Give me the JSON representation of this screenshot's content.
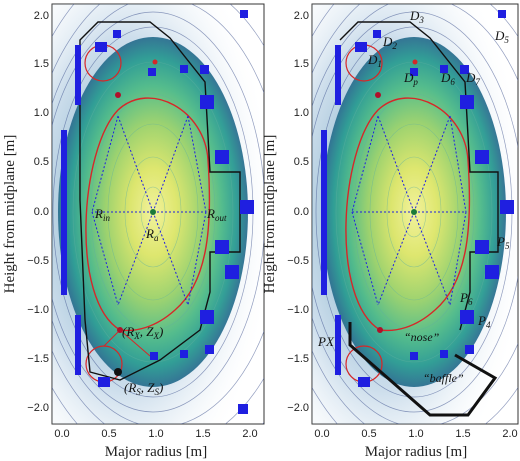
{
  "figure": {
    "xlabel": "Major radius [m]",
    "ylabel": "Height from midplane [m]",
    "xticks": [
      "0.0",
      "0.5",
      "1.0",
      "1.5",
      "2.0"
    ],
    "yticks": [
      "2.0",
      "1.5",
      "1.0",
      "0.5",
      "0.0",
      "−0.5",
      "−1.0",
      "−1.5",
      "−2.0"
    ]
  },
  "left_panel": {
    "labels": {
      "rin": "R",
      "rin_sub": "in",
      "ra": "R",
      "ra_sub": "a",
      "rout": "R",
      "rout_sub": "out",
      "x_point": "(R",
      "x_point_sub1": "X",
      "x_point_mid": ", Z",
      "x_point_sub2": "X",
      "x_point_end": ")",
      "strike": "(R",
      "strike_sub1": "S",
      "strike_mid": ", Z",
      "strike_sub2": "S",
      "strike_end": ")"
    }
  },
  "right_panel": {
    "labels": {
      "d1": "D",
      "d1_sub": "1",
      "d2": "D",
      "d2_sub": "2",
      "d3": "D",
      "d3_sub": "3",
      "d5": "D",
      "d5_sub": "5",
      "dp": "D",
      "dp_sub": "p",
      "d6": "D",
      "d6_sub": "6",
      "d7": "D",
      "d7_sub": "7",
      "p4": "P",
      "p4_sub": "4",
      "p5": "P",
      "p5_sub": "5",
      "p6": "P",
      "p6_sub": "6",
      "px": "PX",
      "nose": "“nose”",
      "baffle": "“baffle”"
    }
  },
  "colors": {
    "separatrix": "#d62728",
    "wall": "#111111",
    "coils": "#1f1fe0",
    "core": "#f3f08a",
    "contour_outer": "#3b4f8c",
    "fill_outer": "#1f8f8a"
  }
}
